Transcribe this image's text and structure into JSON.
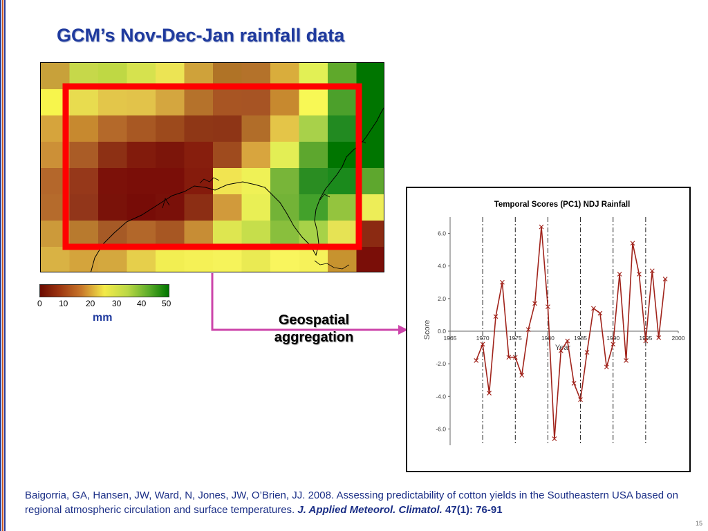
{
  "slide": {
    "title": "GCM’s Nov-Dec-Jan rainfall data",
    "aggregation_label_line1": "Geospatial",
    "aggregation_label_line2": "aggregation",
    "citation_main": "Baigorria, GA, Hansen, JW, Ward, N, Jones, JW, O’Brien, JJ. 2008. Assessing predictability of cotton yields in the Southeastern USA based on regional atmospheric circulation and surface temperatures.",
    "citation_journal": "J. Applied Meteorol. Climatol.",
    "citation_volume": "47(1): 76-91",
    "page_number": "15"
  },
  "colorbar": {
    "ticks": [
      "0",
      "10",
      "20",
      "30",
      "40",
      "50"
    ],
    "unit": "mm",
    "colors": [
      "#6b0a00",
      "#9c3510",
      "#c8772a",
      "#f3ea49",
      "#bbd845",
      "#5fae2b",
      "#007500"
    ]
  },
  "map_grid": {
    "rows": [
      [
        "#c8a13a",
        "#c6d84a",
        "#bfd844",
        "#d6e24e",
        "#ece454",
        "#cfa23a",
        "#b07326",
        "#b4722a",
        "#d9ad3c",
        "#e2f055",
        "#5fa92b",
        "#007500"
      ],
      [
        "#f7f54c",
        "#e8dc4f",
        "#e3c64a",
        "#e2c34a",
        "#d4a63f",
        "#b5722b",
        "#a85523",
        "#a75424",
        "#c7892f",
        "#f8f855",
        "#4ca02b",
        "#007500"
      ],
      [
        "#d6a43c",
        "#c7892f",
        "#b4692a",
        "#a85823",
        "#9d4a1c",
        "#8f3716",
        "#8e3516",
        "#b16d29",
        "#e4c548",
        "#a8d14a",
        "#228a21",
        "#007500"
      ],
      [
        "#cc9037",
        "#aa5c26",
        "#8d3014",
        "#821b0c",
        "#7c150a",
        "#871e0d",
        "#9f4b1e",
        "#d8a53e",
        "#e3ee55",
        "#5da72e",
        "#007500",
        "#007500"
      ],
      [
        "#b4672b",
        "#96381a",
        "#7c1109",
        "#7a0e08",
        "#7a0e08",
        "#851b0c",
        "#f1e451",
        "#eff156",
        "#78b539",
        "#2a8d22",
        "#1b8a1c",
        "#5ea72e"
      ],
      [
        "#b56b2c",
        "#92361a",
        "#7a1209",
        "#770c07",
        "#7a1009",
        "#8c2e14",
        "#d19a3b",
        "#e9ef55",
        "#73b337",
        "#43a12b",
        "#94c43e",
        "#eded58"
      ],
      [
        "#cc9a3a",
        "#b87a2e",
        "#a65a26",
        "#b2672a",
        "#a75723",
        "#c78d35",
        "#dee650",
        "#c6de4b",
        "#89bf3d",
        "#a7d248",
        "#e6e354",
        "#8b2a12"
      ],
      [
        "#d9b244",
        "#d4a43c",
        "#d4a83e",
        "#e6cf4b",
        "#f2ee52",
        "#f5f156",
        "#f6f35a",
        "#eaea53",
        "#f9f55d",
        "#f6f25a",
        "#c7932f",
        "#7a0e08"
      ]
    ]
  },
  "chart_data": {
    "type": "line",
    "title": "Temporal Scores (PC1) NDJ Rainfall",
    "xlabel": "Year",
    "ylabel": "Score",
    "xlim": [
      1965,
      2000
    ],
    "ylim": [
      -7,
      7
    ],
    "xticks": [
      "1965",
      "1970",
      "1975",
      "1980",
      "1985",
      "1990",
      "1995",
      "2000"
    ],
    "yticks": [
      "6.0",
      "4.0",
      "2.0",
      "0.0",
      "-2.0",
      "-4.0",
      "-6.0"
    ],
    "grid": false,
    "vertical_dashed_lines_at": [
      1970,
      1975,
      1980,
      1985,
      1990,
      1995
    ],
    "series": [
      {
        "color": "#a0231b",
        "marker": "x",
        "x": [
          1969,
          1970,
          1971,
          1972,
          1973,
          1974,
          1975,
          1976,
          1977,
          1978,
          1979,
          1980,
          1981,
          1982,
          1983,
          1984,
          1985,
          1986,
          1987,
          1988,
          1989,
          1990,
          1991,
          1992,
          1993,
          1994,
          1995,
          1996,
          1997,
          1998
        ],
        "y": [
          -1.8,
          -0.8,
          -3.8,
          0.9,
          3.0,
          -1.6,
          -1.6,
          -2.7,
          0.1,
          1.7,
          6.4,
          1.5,
          -6.6,
          -1.2,
          -0.6,
          -3.2,
          -4.2,
          -1.3,
          1.4,
          1.1,
          -2.2,
          -0.8,
          3.5,
          -1.8,
          5.4,
          3.5,
          -0.6,
          3.7,
          -0.4,
          3.2
        ]
      }
    ]
  }
}
